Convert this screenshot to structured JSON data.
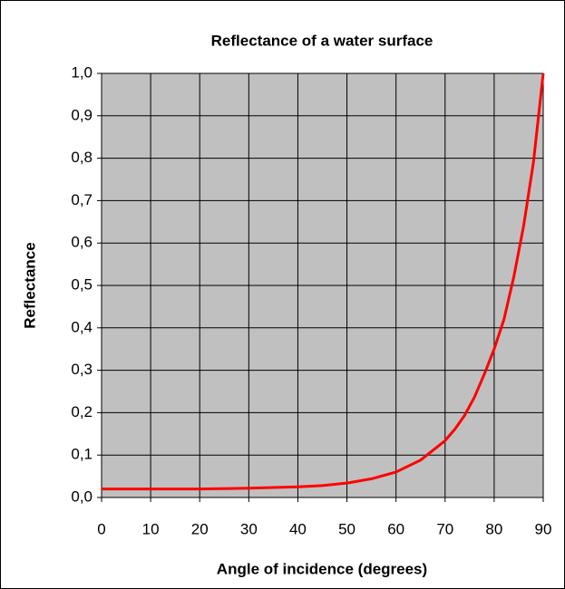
{
  "chart_data": {
    "type": "line",
    "title": "Reflectance of a water surface",
    "x_label": "Angle of incidence (degrees)",
    "y_label": "Reflectance",
    "x": [
      0,
      10,
      20,
      26,
      30,
      40,
      45,
      50,
      55,
      60,
      65,
      70,
      72,
      74,
      76,
      78,
      80,
      82,
      84,
      86,
      88,
      90
    ],
    "series": [
      {
        "name": "Reflectance",
        "color": "#ff0000",
        "values": [
          0.02,
          0.02,
          0.02,
          0.021,
          0.022,
          0.025,
          0.028,
          0.034,
          0.044,
          0.06,
          0.088,
          0.134,
          0.161,
          0.194,
          0.237,
          0.291,
          0.35,
          0.42,
          0.52,
          0.64,
          0.79,
          1.0
        ]
      }
    ],
    "xlim": [
      0,
      90
    ],
    "xticks": [
      0,
      10,
      20,
      30,
      40,
      50,
      60,
      70,
      80,
      90
    ],
    "ylim": [
      0,
      1
    ],
    "yticks": [
      {
        "value": 0,
        "label": "0,0"
      },
      {
        "value": 0.1,
        "label": "0,1"
      },
      {
        "value": 0.2,
        "label": "0,2"
      },
      {
        "value": 0.3,
        "label": "0,3"
      },
      {
        "value": 0.4,
        "label": "0,4"
      },
      {
        "value": 0.5,
        "label": "0,5"
      },
      {
        "value": 0.6,
        "label": "0,6"
      },
      {
        "value": 0.7,
        "label": "0,7"
      },
      {
        "value": 0.8,
        "label": "0,8"
      },
      {
        "value": 0.9,
        "label": "0,9"
      },
      {
        "value": 1,
        "label": "1,0"
      }
    ],
    "grid": true,
    "plot_background": "#c0c0c0"
  }
}
